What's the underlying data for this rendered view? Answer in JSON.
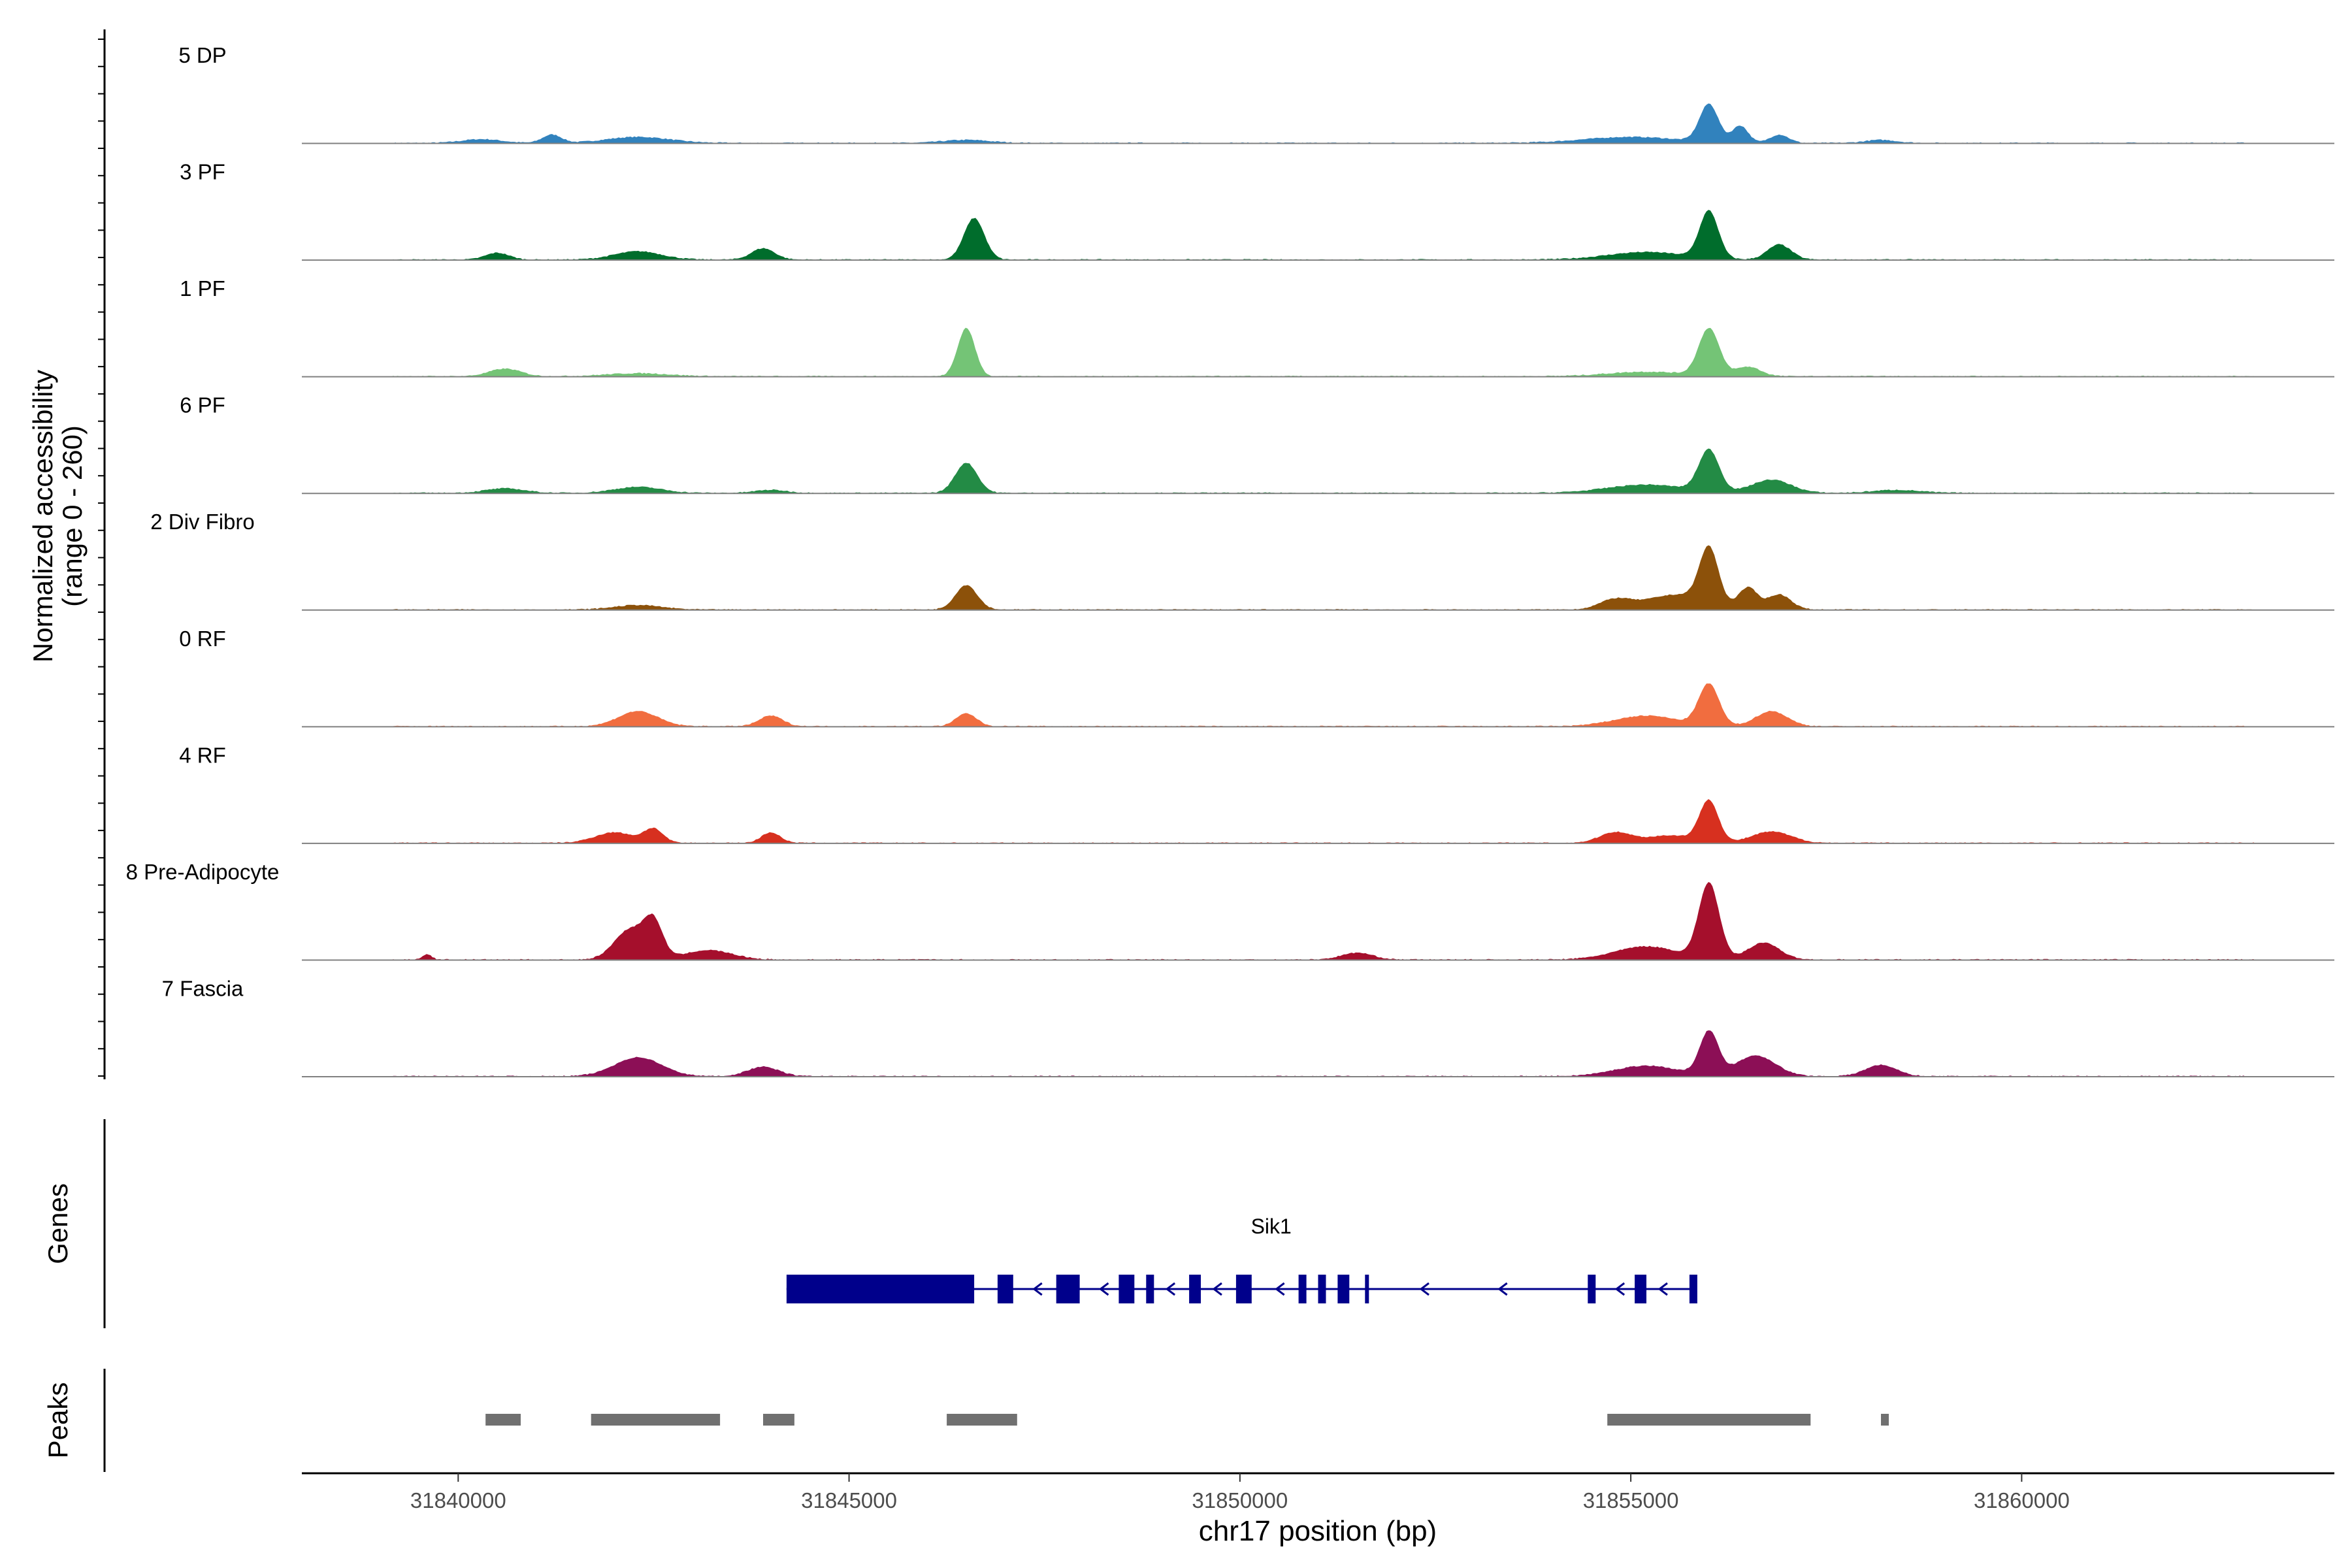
{
  "chart_data": {
    "type": "area",
    "title": "",
    "genome_x_range": [
      31838000,
      31864000
    ],
    "x_ticks": [
      31840000,
      31845000,
      31850000,
      31855000,
      31860000
    ],
    "x_tick_labels": [
      "31840000",
      "31845000",
      "31850000",
      "31855000",
      "31860000"
    ],
    "xlabel": "chr17 position (bp)",
    "ylabel_line1": "Normalized accessibility",
    "ylabel_line2": "(range 0 - 260)",
    "y_range": [
      0,
      260
    ],
    "tracks": [
      {
        "name": "5 DP",
        "color": "#3182bd",
        "peaks": [
          [
            31840300,
            10,
            250
          ],
          [
            31841200,
            22,
            120
          ],
          [
            31842300,
            16,
            400
          ],
          [
            31846500,
            8,
            300
          ],
          [
            31855000,
            16,
            600
          ],
          [
            31856000,
            100,
            120
          ],
          [
            31856400,
            45,
            100
          ],
          [
            31856900,
            22,
            120
          ],
          [
            31858200,
            8,
            200
          ]
        ]
      },
      {
        "name": "3 PF",
        "color": "#006d2c",
        "peaks": [
          [
            31840500,
            18,
            150
          ],
          [
            31842300,
            22,
            300
          ],
          [
            31843900,
            30,
            150
          ],
          [
            31846600,
            110,
            130
          ],
          [
            31855200,
            20,
            500
          ],
          [
            31856000,
            125,
            120
          ],
          [
            31856900,
            40,
            150
          ]
        ]
      },
      {
        "name": "1 PF",
        "color": "#74c476",
        "peaks": [
          [
            31840600,
            20,
            200
          ],
          [
            31842300,
            8,
            400
          ],
          [
            31846500,
            128,
            110
          ],
          [
            31855200,
            12,
            500
          ],
          [
            31856000,
            125,
            130
          ],
          [
            31856500,
            25,
            160
          ]
        ]
      },
      {
        "name": "6 PF",
        "color": "#238b45",
        "peaks": [
          [
            31840600,
            12,
            250
          ],
          [
            31842300,
            16,
            300
          ],
          [
            31844000,
            8,
            200
          ],
          [
            31846500,
            80,
            140
          ],
          [
            31855200,
            22,
            500
          ],
          [
            31856000,
            110,
            130
          ],
          [
            31856800,
            35,
            250
          ],
          [
            31858400,
            8,
            300
          ]
        ]
      },
      {
        "name": "2 Div Fibro",
        "color": "#8c510a",
        "peaks": [
          [
            31842300,
            12,
            300
          ],
          [
            31846500,
            65,
            140
          ],
          [
            31854800,
            25,
            200
          ],
          [
            31855600,
            40,
            400
          ],
          [
            31856000,
            145,
            120
          ],
          [
            31856500,
            55,
            120
          ],
          [
            31856900,
            40,
            150
          ]
        ]
      },
      {
        "name": "0 RF",
        "color": "#f16d3f",
        "peaks": [
          [
            31842300,
            40,
            250
          ],
          [
            31844000,
            28,
            150
          ],
          [
            31846500,
            34,
            130
          ],
          [
            31855200,
            28,
            400
          ],
          [
            31856000,
            110,
            130
          ],
          [
            31856800,
            40,
            200
          ]
        ]
      },
      {
        "name": "4 RF",
        "color": "#d7301f",
        "peaks": [
          [
            31842000,
            28,
            250
          ],
          [
            31842500,
            36,
            120
          ],
          [
            31844000,
            28,
            120
          ],
          [
            31854800,
            28,
            200
          ],
          [
            31855500,
            20,
            300
          ],
          [
            31856000,
            110,
            120
          ],
          [
            31856800,
            30,
            250
          ]
        ]
      },
      {
        "name": "8 Pre-Adipocyte",
        "color": "#a50f2c",
        "peaks": [
          [
            31839600,
            14,
            60
          ],
          [
            31842200,
            80,
            200
          ],
          [
            31842500,
            90,
            120
          ],
          [
            31843200,
            25,
            300
          ],
          [
            31851500,
            18,
            200
          ],
          [
            31855200,
            35,
            400
          ],
          [
            31856000,
            200,
            130
          ],
          [
            31856700,
            45,
            200
          ]
        ]
      },
      {
        "name": "7 Fascia",
        "color": "#8c0f56",
        "peaks": [
          [
            31842300,
            50,
            300
          ],
          [
            31843900,
            25,
            200
          ],
          [
            31855200,
            28,
            400
          ],
          [
            31856000,
            115,
            120
          ],
          [
            31856600,
            55,
            250
          ],
          [
            31858200,
            30,
            200
          ]
        ]
      }
    ],
    "genes_label": "Genes",
    "gene": {
      "name": "Sik1",
      "color": "#00008b",
      "start": 31844200,
      "end": 31855800,
      "strand": "-",
      "exons": [
        [
          31844200,
          31846600
        ],
        [
          31846900,
          31847100
        ],
        [
          31847650,
          31847950
        ],
        [
          31848450,
          31848650
        ],
        [
          31848800,
          31848900
        ],
        [
          31849350,
          31849500
        ],
        [
          31849950,
          31850150
        ],
        [
          31850750,
          31850850
        ],
        [
          31851000,
          31851100
        ],
        [
          31851250,
          31851400
        ],
        [
          31851600,
          31851650
        ],
        [
          31854450,
          31854550
        ],
        [
          31855050,
          31855200
        ],
        [
          31855750,
          31855850
        ]
      ],
      "arrows": [
        31847400,
        31848250,
        31849100,
        31849700,
        31850500,
        31852350,
        31853350,
        31854850,
        31855400
      ]
    },
    "peaks_label": "Peaks",
    "peak_regions": [
      [
        31840350,
        31840800
      ],
      [
        31841700,
        31843350
      ],
      [
        31843900,
        31844300
      ],
      [
        31846250,
        31847150
      ],
      [
        31854700,
        31857300
      ],
      [
        31858200,
        31858300
      ]
    ]
  }
}
